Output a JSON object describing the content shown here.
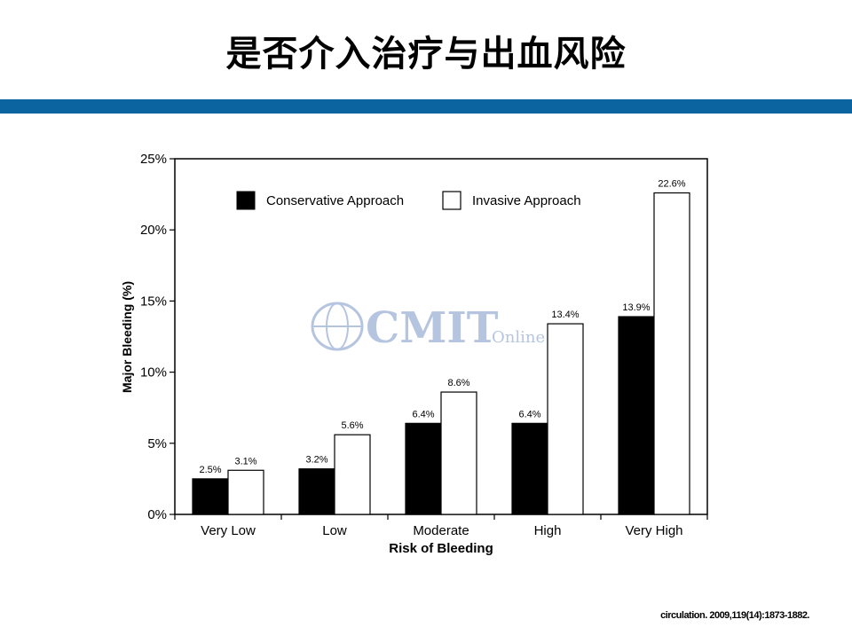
{
  "slide": {
    "title": "是否介入治疗与出血风险",
    "rule_color": "#0b63a0",
    "citation": "circulation. 2009,119(14):1873-1882."
  },
  "watermark": {
    "brand": "CMIT",
    "tag": "Online",
    "color": "#2f5aa6"
  },
  "chart_data": {
    "type": "bar",
    "title": "",
    "xlabel": "Risk of Bleeding",
    "ylabel": "Major Bleeding (%)",
    "ylim": [
      0,
      25
    ],
    "yticks": [
      0,
      5,
      10,
      15,
      20,
      25
    ],
    "ytick_labels": [
      "0%",
      "5%",
      "10%",
      "15%",
      "20%",
      "25%"
    ],
    "grid": false,
    "legend_position": "top-left",
    "categories": [
      "Very Low",
      "Low",
      "Moderate",
      "High",
      "Very High"
    ],
    "series": [
      {
        "name": "Conservative Approach",
        "values": [
          2.5,
          3.2,
          6.4,
          6.4,
          13.9
        ],
        "labels": [
          "2.5%",
          "3.2%",
          "6.4%",
          "6.4%",
          "13.9%"
        ],
        "color": "#000000"
      },
      {
        "name": "Invasive Approach",
        "values": [
          3.1,
          5.6,
          8.6,
          13.4,
          22.6
        ],
        "labels": [
          "3.1%",
          "5.6%",
          "8.6%",
          "13.4%",
          "22.6%"
        ],
        "color": "#ffffff"
      }
    ]
  }
}
